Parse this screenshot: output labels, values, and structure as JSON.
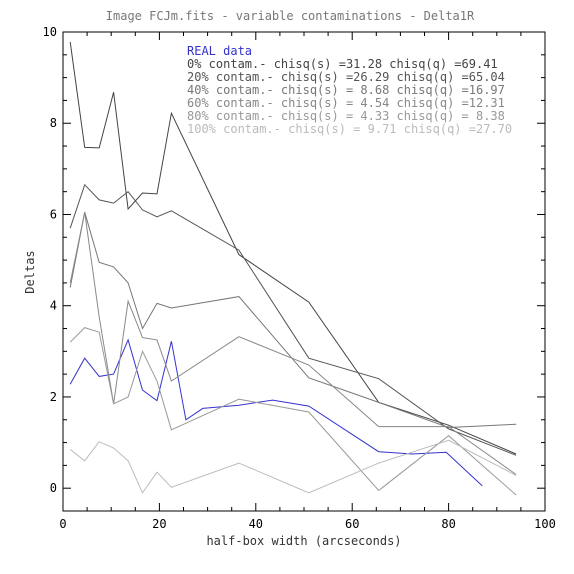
{
  "chart_data": {
    "type": "line",
    "title": "Image FCJm.fits - variable contaminations - Delta1R",
    "xlabel": "half-box width (arcseconds)",
    "ylabel": "Deltas",
    "xlim": [
      0,
      100
    ],
    "ylim": [
      -0.5,
      10
    ],
    "xticks": [
      0,
      20,
      40,
      60,
      80,
      100
    ],
    "yticks": [
      0,
      2,
      4,
      6,
      8,
      10
    ],
    "grid": false,
    "legend_placement": "top-center",
    "series": [
      {
        "name": "REAL data",
        "color": "#3333cc",
        "x": [
          1.5,
          4.5,
          7.5,
          10.5,
          13.5,
          16.5,
          19.5,
          22.5,
          25.5,
          29,
          36.5,
          43.5,
          51,
          65.5,
          72.5,
          79.5,
          87
        ],
        "y": [
          2.28,
          2.85,
          2.45,
          2.5,
          3.25,
          2.15,
          1.92,
          3.22,
          1.5,
          1.75,
          1.82,
          1.93,
          1.8,
          0.8,
          0.75,
          0.79,
          0.05
        ]
      },
      {
        "name": "0% contam.- chisq(s) =31.28 chisq(q) =69.41",
        "color": "#444444",
        "x": [
          1.5,
          4.5,
          7.5,
          10.5,
          13.5,
          16.5,
          19.5,
          22.5,
          36.5,
          51,
          65.5,
          80,
          94
        ],
        "y": [
          9.78,
          7.47,
          7.46,
          8.68,
          6.12,
          6.47,
          6.45,
          8.22,
          5.12,
          4.08,
          1.88,
          1.38,
          0.75
        ]
      },
      {
        "name": "20% contam.- chisq(s) =26.29 chisq(q) =65.04",
        "color": "#555555",
        "x": [
          1.5,
          4.5,
          7.5,
          10.5,
          13.5,
          16.5,
          19.5,
          22.5,
          36.5,
          51,
          65.5,
          80,
          94
        ],
        "y": [
          5.7,
          6.65,
          6.32,
          6.25,
          6.5,
          6.1,
          5.95,
          6.08,
          5.22,
          2.85,
          2.4,
          1.3,
          0.72
        ]
      },
      {
        "name": "40% contam.- chisq(s) = 8.68 chisq(q) =16.97",
        "color": "#777777",
        "x": [
          1.5,
          4.5,
          7.5,
          10.5,
          13.5,
          16.5,
          19.5,
          22.5,
          36.5,
          51,
          65.5,
          80,
          94
        ],
        "y": [
          4.4,
          6.05,
          4.95,
          4.85,
          4.5,
          3.5,
          4.05,
          3.95,
          4.2,
          2.42,
          1.88,
          1.33,
          1.4
        ]
      },
      {
        "name": "60% contam.- chisq(s) = 4.54 chisq(q) =12.31",
        "color": "#888888",
        "x": [
          1.5,
          4.5,
          7.5,
          10.5,
          13.5,
          16.5,
          19.5,
          22.5,
          36.5,
          51,
          65.5,
          80,
          94
        ],
        "y": [
          4.5,
          6.05,
          3.75,
          1.85,
          4.1,
          3.3,
          3.25,
          2.35,
          3.32,
          2.7,
          1.35,
          1.35,
          0.3
        ]
      },
      {
        "name": "80% contam.- chisq(s) = 4.33 chisq(q) = 8.38",
        "color": "#999999",
        "x": [
          1.5,
          4.5,
          7.5,
          10.5,
          13.5,
          16.5,
          19.5,
          22.5,
          36.5,
          51,
          65.5,
          80,
          94
        ],
        "y": [
          3.2,
          3.52,
          3.42,
          1.85,
          2.0,
          3.0,
          2.35,
          1.28,
          1.95,
          1.67,
          -0.05,
          1.15,
          -0.15
        ]
      },
      {
        "name": "100% contam.- chisq(s) = 9.71 chisq(q) =27.70",
        "color": "#bbbbbb",
        "x": [
          1.5,
          4.5,
          7.5,
          10.5,
          13.5,
          16.5,
          19.5,
          22.5,
          36.5,
          51,
          65.5,
          80,
          94
        ],
        "y": [
          0.85,
          0.6,
          1.02,
          0.88,
          0.6,
          -0.1,
          0.35,
          0.02,
          0.55,
          -0.1,
          0.55,
          1.05,
          0.28
        ]
      }
    ]
  }
}
